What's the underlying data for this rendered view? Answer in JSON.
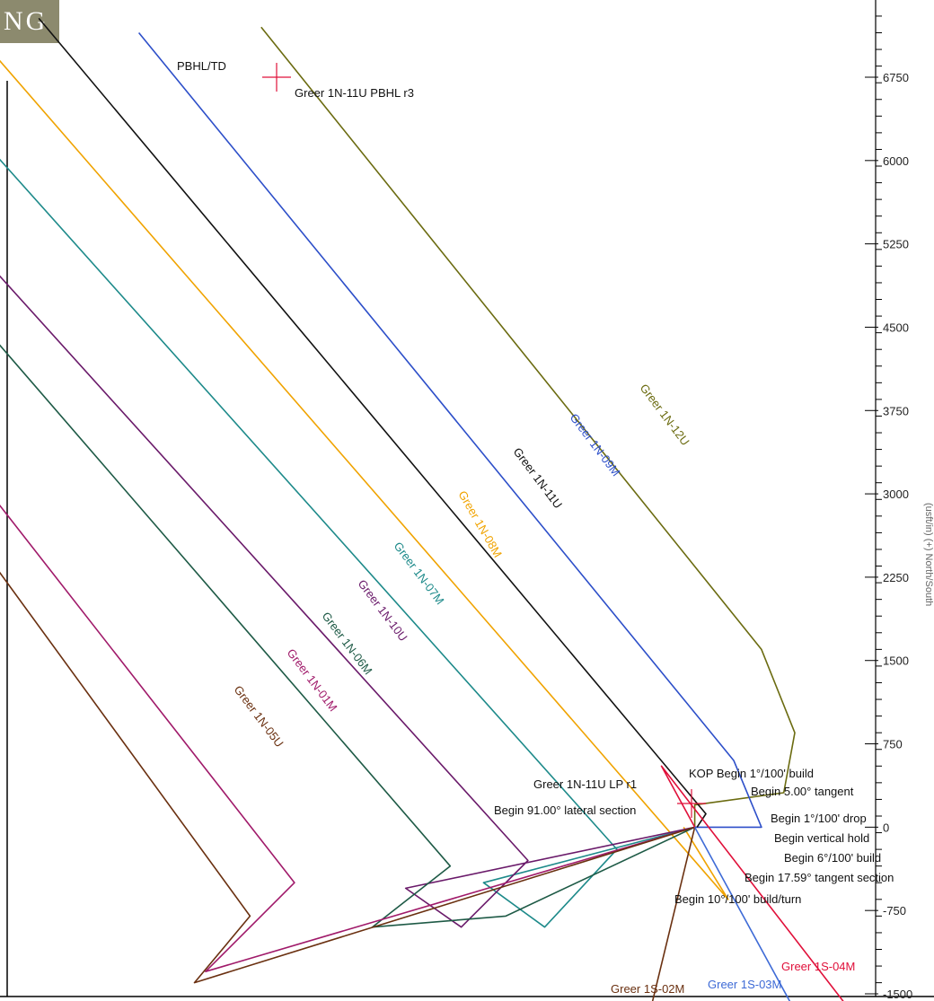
{
  "logo_text": "NG",
  "axis_title": "(usft/in) (+) North/South",
  "chart_data": {
    "type": "line",
    "title": "",
    "xlabel": "",
    "ylabel": "(usft/in) (+) North/South",
    "y_ticks": [
      6750,
      6000,
      5250,
      4500,
      3750,
      3000,
      2250,
      1500,
      750,
      0,
      -750,
      -1500
    ],
    "y_tick_labels": [
      "6750",
      "6000",
      "5250",
      "4500",
      "3750",
      "3000",
      "2250",
      "1500",
      "750",
      "0",
      "-750",
      "-1500"
    ],
    "ylim": [
      -1500,
      7300
    ],
    "x_unit": "usft",
    "xlim": [
      -8400,
      1200
    ],
    "series": [
      {
        "name": "Greer 1N-12U",
        "color": "#6b6b10",
        "points": [
          [
            -4000,
            7200
          ],
          [
            500,
            1600
          ],
          [
            800,
            850
          ],
          [
            700,
            310
          ],
          [
            -100,
            200
          ],
          [
            -100,
            0
          ]
        ]
      },
      {
        "name": "Greer 1N-09M",
        "color": "#2d4fc9",
        "points": [
          [
            -5100,
            7150
          ],
          [
            250,
            600
          ],
          [
            500,
            0
          ],
          [
            -100,
            0
          ]
        ]
      },
      {
        "name": "Greer 1N-11U",
        "color": "#111111",
        "points": [
          [
            -6000,
            7280
          ],
          [
            0,
            120
          ],
          [
            -80,
            0
          ]
        ]
      },
      {
        "name": "Greer 1N-08M",
        "color": "#f0a300",
        "points": [
          [
            -6700,
            7300
          ],
          [
            200,
            -650
          ],
          [
            -200,
            0
          ]
        ]
      },
      {
        "name": "Greer 1N-07M",
        "color": "#1d8a8a",
        "points": [
          [
            -6700,
            6400
          ],
          [
            -800,
            -200
          ],
          [
            -1450,
            -900
          ],
          [
            -2000,
            -500
          ],
          [
            -100,
            0
          ]
        ]
      },
      {
        "name": "Greer 1N-10U",
        "color": "#6a1a6a",
        "points": [
          [
            -7200,
            5900
          ],
          [
            -1600,
            -300
          ],
          [
            -2200,
            -900
          ],
          [
            -2700,
            -550
          ],
          [
            -100,
            0
          ]
        ]
      },
      {
        "name": "Greer 1N-06M",
        "color": "#1e5a46",
        "points": [
          [
            -7700,
            5900
          ],
          [
            -2300,
            -350
          ],
          [
            -3000,
            -900
          ],
          [
            -1800,
            -800
          ],
          [
            -100,
            0
          ]
        ]
      },
      {
        "name": "Greer 1N-01M",
        "color": "#a01a6a",
        "points": [
          [
            -8150,
            5200
          ],
          [
            -3700,
            -500
          ],
          [
            -4500,
            -1300
          ],
          [
            -100,
            0
          ]
        ]
      },
      {
        "name": "Greer 1N-05U",
        "color": "#6a3010",
        "points": [
          [
            -8250,
            4900
          ],
          [
            -4100,
            -800
          ],
          [
            -4600,
            -1400
          ],
          [
            -100,
            0
          ]
        ]
      },
      {
        "name": "Greer 1S-02M",
        "color": "#6a3010",
        "points": [
          [
            -100,
            0
          ],
          [
            -500,
            -1650
          ]
        ]
      },
      {
        "name": "Greer 1S-03M",
        "color": "#3d6ad6",
        "points": [
          [
            -100,
            0
          ],
          [
            800,
            -1650
          ]
        ]
      },
      {
        "name": "Greer 1S-04M",
        "color": "#e0103a",
        "points": [
          [
            -100,
            0
          ],
          [
            -400,
            550
          ],
          [
            1300,
            -1650
          ]
        ]
      }
    ],
    "annotations": [
      "PBHL/TD",
      "Greer 1N-11U PBHL r3",
      "Greer 1N-11U LP r1",
      "Begin 91.00° lateral section",
      "KOP Begin 1°/100' build",
      "Begin 5.00° tangent",
      "Begin 1°/100' drop",
      "Begin vertical hold",
      "Begin 6°/100' build",
      "Begin 17.59° tangent section",
      "Begin 10°/100' build/turn"
    ],
    "grid": false,
    "legend": "none"
  }
}
